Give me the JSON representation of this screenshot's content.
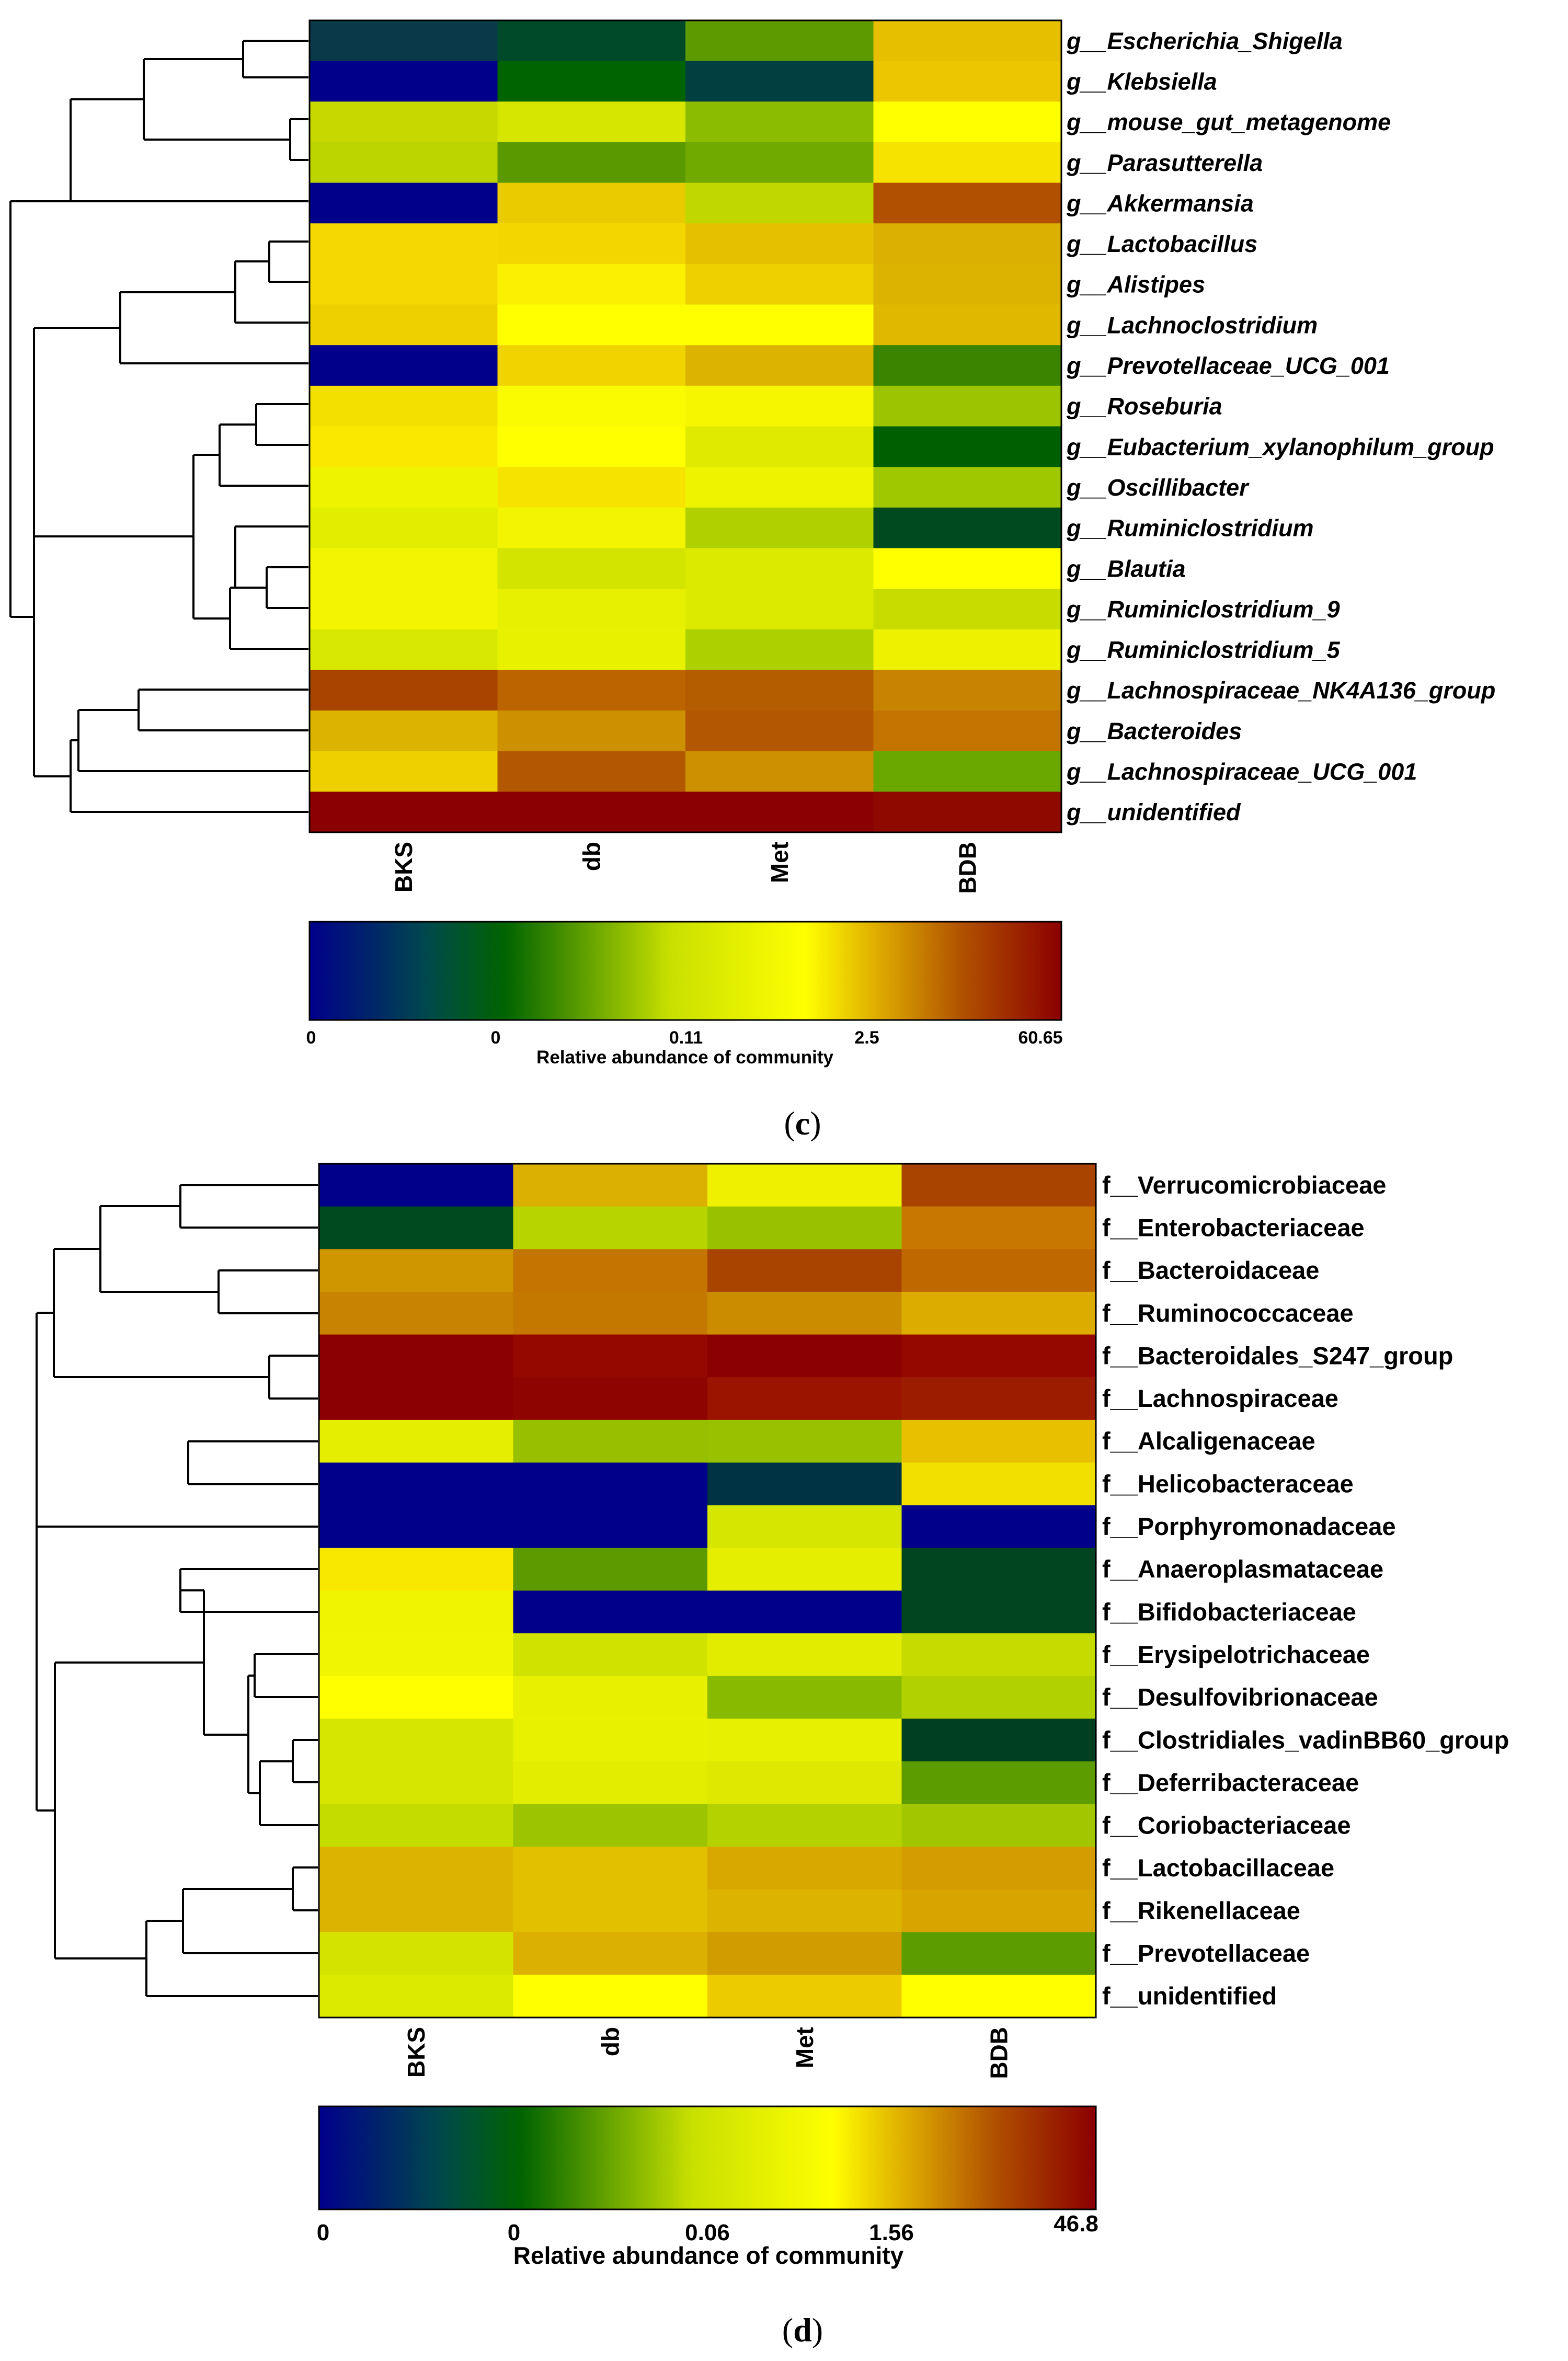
{
  "chart_data": [
    {
      "type": "heatmap",
      "panel_label": "c",
      "columns": [
        "BKS",
        "db",
        "Met",
        "BDB"
      ],
      "rows": [
        "g__Escherichia_Shigella",
        "g__Klebsiella",
        "g__mouse_gut_metagenome",
        "g__Parasutterella",
        "g__Akkermansia",
        "g__Lactobacillus",
        "g__Alistipes",
        "g__Lachnoclostridium",
        "g__Prevotellaceae_UCG_001",
        "g__Roseburia",
        "g__Eubacterium_xylanophilum_group",
        "g__Oscillibacter",
        "g__Ruminiclostridium",
        "g__Blautia",
        "g__Ruminiclostridium_9",
        "g__Ruminiclostridium_5",
        "g__Lachnospiraceae_NK4A136_group",
        "g__Bacteroides",
        "g__Lachnospiraceae_UCG_001",
        "g__unidentified"
      ],
      "cell_colors": [
        [
          "#0a3a4a",
          "#004a2a",
          "#5c9a00",
          "#e6bf00"
        ],
        [
          "#00008b",
          "#006400",
          "#004040",
          "#ecc600"
        ],
        [
          "#c6d800",
          "#d6e600",
          "#8cbc00",
          "#ffff00"
        ],
        [
          "#bcd400",
          "#5a9a00",
          "#70aa00",
          "#f6e400"
        ],
        [
          "#00008b",
          "#e8cc00",
          "#c0d800",
          "#b05000"
        ],
        [
          "#f4d800",
          "#f2d600",
          "#e4c000",
          "#dcb000"
        ],
        [
          "#f4d800",
          "#faf000",
          "#ecd000",
          "#dcb400"
        ],
        [
          "#ecd000",
          "#ffff00",
          "#ffff00",
          "#e0b800"
        ],
        [
          "#00008b",
          "#f0d400",
          "#dcb400",
          "#3a8400"
        ],
        [
          "#f4e000",
          "#fafa00",
          "#f6f600",
          "#9cc400"
        ],
        [
          "#fae800",
          "#ffff00",
          "#e0ea00",
          "#006000"
        ],
        [
          "#eef400",
          "#f6e400",
          "#eef400",
          "#a0c800"
        ],
        [
          "#e2ee00",
          "#f2f400",
          "#b0d000",
          "#004a20"
        ],
        [
          "#f2f400",
          "#d2e400",
          "#dcea00",
          "#ffff00"
        ],
        [
          "#f2f400",
          "#e6f000",
          "#dcea00",
          "#c8dc00"
        ],
        [
          "#d8e800",
          "#e8f200",
          "#acd000",
          "#eef200"
        ],
        [
          "#a84400",
          "#bc6400",
          "#b45c00",
          "#c88400"
        ],
        [
          "#dcb400",
          "#cc9000",
          "#b45800",
          "#c47400"
        ],
        [
          "#ecd000",
          "#b45800",
          "#cc9000",
          "#6aa800"
        ],
        [
          "#8b0000",
          "#8b0000",
          "#8b0000",
          "#8e0a00"
        ]
      ],
      "colorbar": {
        "ticks": [
          "0",
          "0",
          "0.11",
          "2.5",
          "60.65"
        ],
        "title": "Relative abundance of community",
        "colors": [
          "#00008b",
          "#004a4a",
          "#006400",
          "#c8e000",
          "#ffff00",
          "#e0b000",
          "#b05000",
          "#8b0000"
        ]
      }
    },
    {
      "type": "heatmap",
      "panel_label": "d",
      "columns": [
        "BKS",
        "db",
        "Met",
        "BDB"
      ],
      "rows": [
        "f__Verrucomicrobiaceae",
        "f__Enterobacteriaceae",
        "f__Bacteroidaceae",
        "f__Ruminococcaceae",
        "f__Bacteroidales_S247_group",
        "f__Lachnospiraceae",
        "f__Alcaligenaceae",
        "f__Helicobacteraceae",
        "f__Porphyromonadaceae",
        "f__Anaeroplasmataceae",
        "f__Bifidobacteriaceae",
        "f__Erysipelotrichaceae",
        "f__Desulfovibrionaceae",
        "f__Clostridiales_vadinBB60_group",
        "f__Deferribacteraceae",
        "f__Coriobacteriaceae",
        "f__Lactobacillaceae",
        "f__Rikenellaceae",
        "f__Prevotellaceae",
        "f__unidentified"
      ],
      "cell_colors": [
        [
          "#00008b",
          "#dcb000",
          "#eef000",
          "#a84400"
        ],
        [
          "#004a20",
          "#b8d400",
          "#98c200",
          "#c87800"
        ],
        [
          "#d09600",
          "#c47400",
          "#a84400",
          "#c06800"
        ],
        [
          "#c88400",
          "#c47800",
          "#cc8c00",
          "#dcac00"
        ],
        [
          "#8b0000",
          "#940800",
          "#8b0000",
          "#940800"
        ],
        [
          "#8b0000",
          "#8e0400",
          "#9a1400",
          "#9c1c00"
        ],
        [
          "#e6ee00",
          "#96c000",
          "#98c200",
          "#e8c000"
        ],
        [
          "#00008b",
          "#00008b",
          "#003444",
          "#f2e000"
        ],
        [
          "#00008b",
          "#00008b",
          "#d6e600",
          "#00008b"
        ],
        [
          "#f8e800",
          "#5c9a00",
          "#e6ee00",
          "#004420"
        ],
        [
          "#f0f400",
          "#00008b",
          "#00008b",
          "#004420"
        ],
        [
          "#f0f600",
          "#d0e200",
          "#e2ec00",
          "#c6dc00"
        ],
        [
          "#ffff00",
          "#e8f000",
          "#88ba00",
          "#b2d200"
        ],
        [
          "#d6e600",
          "#e8f200",
          "#e6f000",
          "#004020"
        ],
        [
          "#d6e600",
          "#e2ee00",
          "#dee800",
          "#5c9c00"
        ],
        [
          "#c4dc00",
          "#9cc400",
          "#b4d200",
          "#a2c600"
        ],
        [
          "#dcb400",
          "#e2c000",
          "#d8a800",
          "#d49c00"
        ],
        [
          "#dcb400",
          "#e2c000",
          "#dcb400",
          "#d8a400"
        ],
        [
          "#d4e400",
          "#dcb000",
          "#d09c00",
          "#5c9c00"
        ],
        [
          "#dcea00",
          "#ffff00",
          "#eccc00",
          "#ffff00"
        ]
      ],
      "colorbar": {
        "ticks": [
          "0",
          "0",
          "0.06",
          "1.56",
          "46.8"
        ],
        "title": "Relative abundance of community",
        "colors": [
          "#00008b",
          "#004a4a",
          "#006400",
          "#c8e000",
          "#ffff00",
          "#e0b000",
          "#b05000",
          "#8b0000"
        ]
      }
    }
  ]
}
